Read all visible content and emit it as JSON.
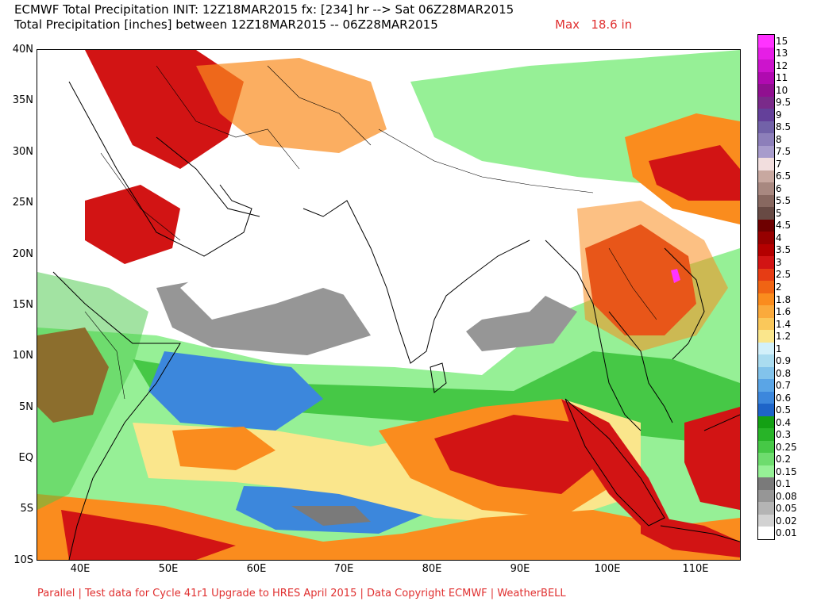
{
  "header": {
    "line1": "ECMWF Total Precipitation INIT: 12Z18MAR2015 fx: [234] hr --> Sat 06Z28MAR2015",
    "line2": "Total Precipitation [inches] between 12Z18MAR2015 -- 06Z28MAR2015",
    "max": "Max   18.6 in"
  },
  "footer": "Parallel | Test data for Cycle 41r1 Upgrade to HRES April 2015 | Data Copyright ECMWF | WeatherBELL",
  "lat_labels": [
    "40N",
    "35N",
    "30N",
    "25N",
    "20N",
    "15N",
    "10N",
    "5N",
    "EQ",
    "5S",
    "10S"
  ],
  "lon_labels": [
    "40E",
    "50E",
    "60E",
    "70E",
    "80E",
    "90E",
    "100E",
    "110E"
  ],
  "legend": {
    "labels": [
      "15",
      "13",
      "12",
      "11",
      "10",
      "9.5",
      "9",
      "8.5",
      "8",
      "7.5",
      "7",
      "6.5",
      "6",
      "5.5",
      "5",
      "4.5",
      "4",
      "3.5",
      "3",
      "2.5",
      "2",
      "1.8",
      "1.6",
      "1.4",
      "1.2",
      "1",
      "0.9",
      "0.8",
      "0.7",
      "0.6",
      "0.5",
      "0.4",
      "0.3",
      "0.25",
      "0.2",
      "0.15",
      "0.1",
      "0.08",
      "0.05",
      "0.02",
      "0.01"
    ],
    "colors": [
      "#ff33ff",
      "#e61ee6",
      "#cc14cc",
      "#b00ab0",
      "#901090",
      "#7a2a8a",
      "#64409a",
      "#7262a8",
      "#8d7fba",
      "#a89ccc",
      "#f2dede",
      "#c8a8a0",
      "#a88880",
      "#886860",
      "#684a44",
      "#6e0000",
      "#960000",
      "#b40000",
      "#d21414",
      "#e63c14",
      "#f06414",
      "#fa8c1e",
      "#faaa3c",
      "#fac85a",
      "#fae68c",
      "#d2f0fa",
      "#aadcf0",
      "#82c3eb",
      "#5aa5e6",
      "#3c87dc",
      "#1e64c8",
      "#14a014",
      "#28b428",
      "#46c846",
      "#6edc6e",
      "#96f096",
      "#7a7a7a",
      "#969696",
      "#b4b4b4",
      "#d2d2d2",
      "#ffffff"
    ]
  },
  "map": {
    "lat_range": [
      -10,
      40
    ],
    "lon_range": [
      35,
      115
    ],
    "palette": {
      "ocean_light": "#96f096",
      "ocean_green": "#46c846",
      "blue": "#3c87dc",
      "yellow": "#fae68c",
      "orange": "#fa8c1e",
      "red": "#d21414",
      "darkred": "#960000",
      "gray": "#969696",
      "darkgray": "#7a7a7a",
      "coast": "#000000"
    }
  }
}
